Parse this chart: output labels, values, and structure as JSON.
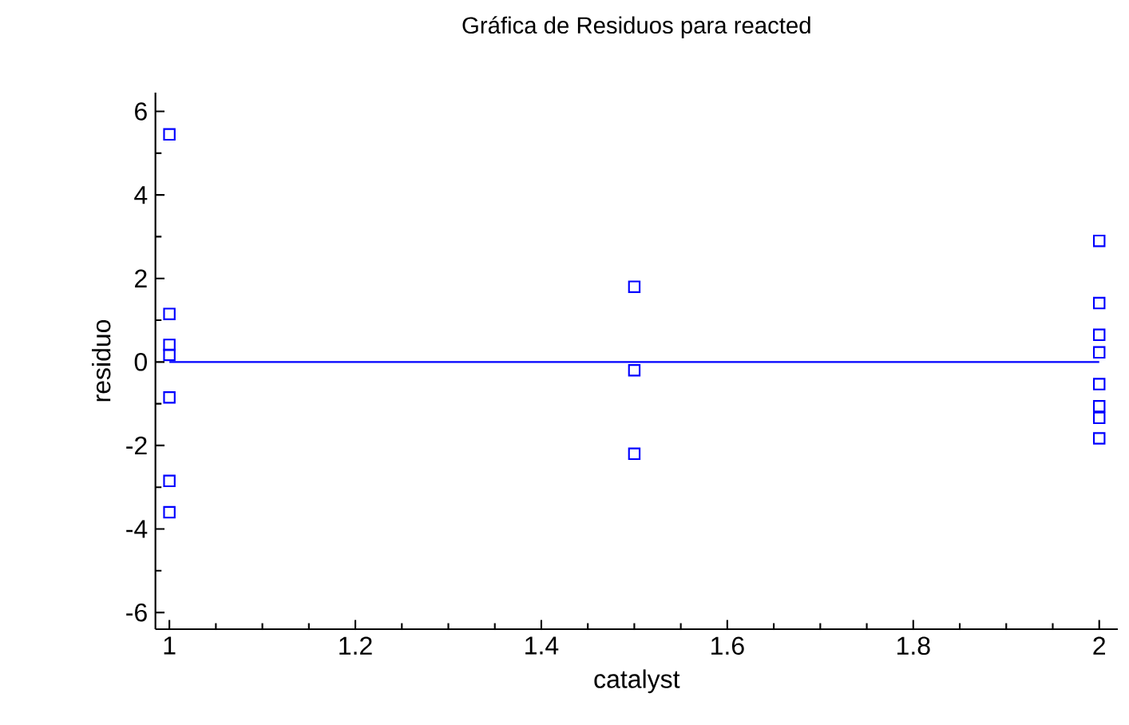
{
  "chart_data": {
    "type": "scatter",
    "title": "Gráfica de Residuos para reacted",
    "xlabel": "catalyst",
    "ylabel": "residuo",
    "x": [
      1,
      1,
      1,
      1,
      1,
      1,
      1,
      1.5,
      1.5,
      1.5,
      2,
      2,
      2,
      2,
      2,
      2,
      2,
      2
    ],
    "values": [
      5.45,
      1.15,
      0.41,
      0.17,
      -0.85,
      -2.85,
      -3.6,
      1.8,
      -0.2,
      -2.2,
      2.9,
      1.41,
      0.65,
      0.23,
      -0.53,
      -1.06,
      -1.34,
      -1.83
    ],
    "color": "#0000ff",
    "marker": "square",
    "grid": false,
    "xlim": [
      0.985,
      2.02
    ],
    "ylim": [
      -6.4,
      6.45
    ],
    "xticks": [
      1,
      1.2,
      1.4,
      1.6,
      1.8,
      2
    ],
    "yticks": [
      -6,
      -4,
      -2,
      0,
      2,
      4,
      6
    ],
    "ref_lines": [
      {
        "axis": "y",
        "value": 0,
        "color": "#0000ff"
      }
    ]
  }
}
